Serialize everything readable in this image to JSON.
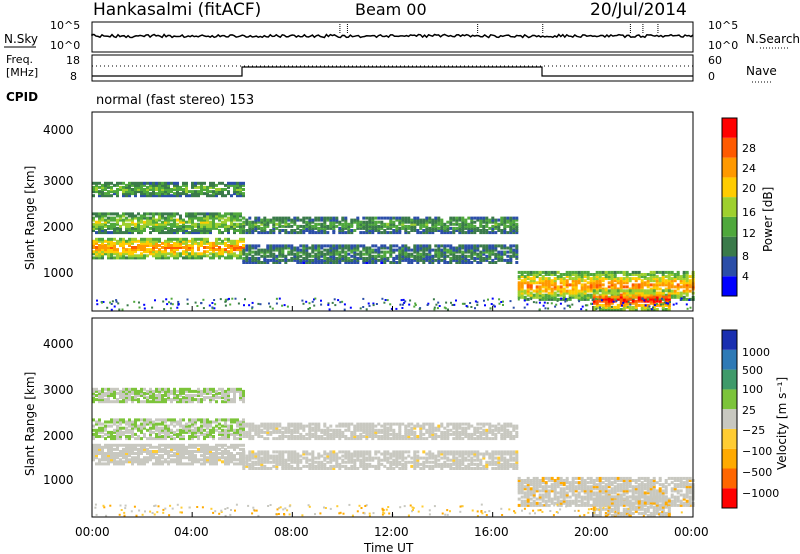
{
  "header": {
    "station": "Hankasalmi (fitACF)",
    "beam": "Beam 00",
    "date": "20/Jul/2014"
  },
  "noise_panel": {
    "left_label": "N.Sky",
    "right_label": "N.Search",
    "ticks_left": [
      "10^5",
      "10^0"
    ],
    "ticks_right": [
      "10^5",
      "10^0"
    ]
  },
  "freq_panel": {
    "left_label_1": "Freq.",
    "left_label_2": "[MHz]",
    "right_label": "Nave",
    "ticks_left": [
      "18",
      "8"
    ],
    "ticks_right": [
      "60",
      "0"
    ],
    "cpid_label": "CPID",
    "mode_text": "normal (fast stereo) 153"
  },
  "power_panel": {
    "ylabel": "Slant Range [km]",
    "yticks": [
      "4000",
      "3000",
      "2000",
      "1000"
    ],
    "colorbar_label": "Power [dB]",
    "colorbar_ticks": [
      "28",
      "24",
      "20",
      "16",
      "12",
      "8",
      "4"
    ],
    "colors": [
      "#0000ff",
      "#2b4ea8",
      "#3a7a4a",
      "#4fa83c",
      "#9ed02e",
      "#ffcc00",
      "#ff9900",
      "#ff5a00",
      "#ff0000"
    ]
  },
  "velocity_panel": {
    "ylabel": "Slant Range [km]",
    "yticks": [
      "4000",
      "3000",
      "2000",
      "1000"
    ],
    "colorbar_label": "Velocity [m s⁻¹]",
    "colorbar_ticks": [
      "1000",
      "500",
      "100",
      "25",
      "−25",
      "−100",
      "−500",
      "−1000"
    ],
    "colors": [
      "#1a2fb0",
      "#2e7ab6",
      "#3f9a6a",
      "#7cc43a",
      "#c8c8c0",
      "#ffcc33",
      "#ffaa00",
      "#ff6600",
      "#ff0000"
    ]
  },
  "x_axis": {
    "ticks": [
      "00:00",
      "04:00",
      "08:00",
      "12:00",
      "16:00",
      "20:00",
      "00:00"
    ],
    "label": "Time UT"
  },
  "chart_data": {
    "type": "heatmap",
    "title": "Hankasalmi (fitACF)",
    "x_range_hours": [
      0,
      24
    ],
    "y_range_km": [
      180,
      4500
    ],
    "power_bands": [
      {
        "t0": 0.0,
        "t1": 6.0,
        "r0": 1300,
        "r1": 1750,
        "db": 24
      },
      {
        "t0": 0.0,
        "t1": 6.0,
        "r0": 1850,
        "r1": 2300,
        "db": 16
      },
      {
        "t0": 0.0,
        "t1": 6.0,
        "r0": 2650,
        "r1": 2950,
        "db": 14
      },
      {
        "t0": 6.0,
        "t1": 17.0,
        "r0": 1850,
        "r1": 2200,
        "db": 12
      },
      {
        "t0": 6.0,
        "t1": 17.0,
        "r0": 1200,
        "r1": 1600,
        "db": 10
      },
      {
        "t0": 17.0,
        "t1": 24.0,
        "r0": 400,
        "r1": 1000,
        "db": 24
      },
      {
        "t0": 20.0,
        "t1": 23.0,
        "r0": 180,
        "r1": 600,
        "db": 30
      }
    ]
  }
}
